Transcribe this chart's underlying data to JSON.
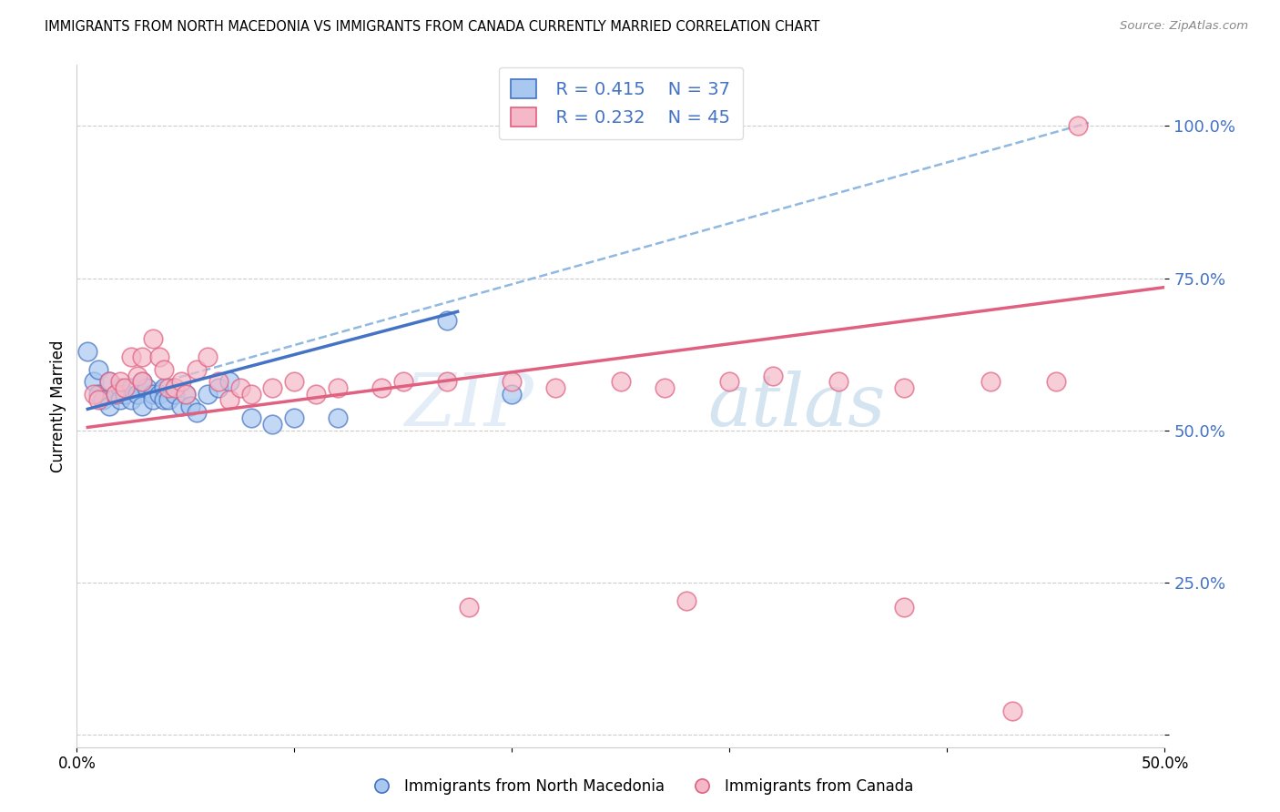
{
  "title": "IMMIGRANTS FROM NORTH MACEDONIA VS IMMIGRANTS FROM CANADA CURRENTLY MARRIED CORRELATION CHART",
  "source": "Source: ZipAtlas.com",
  "ylabel": "Currently Married",
  "xlim": [
    0.0,
    0.5
  ],
  "ylim": [
    -0.02,
    1.1
  ],
  "y_ticks": [
    0.0,
    0.25,
    0.5,
    0.75,
    1.0
  ],
  "y_tick_labels": [
    "",
    "25.0%",
    "50.0%",
    "75.0%",
    "100.0%"
  ],
  "x_ticks": [
    0.0,
    0.1,
    0.2,
    0.3,
    0.4,
    0.5
  ],
  "x_tick_labels": [
    "0.0%",
    "",
    "",
    "",
    "",
    "50.0%"
  ],
  "legend_r1": "R = 0.415",
  "legend_n1": "N = 37",
  "legend_r2": "R = 0.232",
  "legend_n2": "N = 45",
  "color_blue": "#a8c8f0",
  "color_pink": "#f4b8c8",
  "trendline_blue": "#4472c4",
  "trendline_pink": "#e06080",
  "trendline_dashed_color": "#90b8e0",
  "background": "#ffffff",
  "blue_scatter_x": [
    0.005,
    0.008,
    0.01,
    0.01,
    0.012,
    0.015,
    0.015,
    0.018,
    0.02,
    0.02,
    0.022,
    0.025,
    0.025,
    0.028,
    0.03,
    0.03,
    0.032,
    0.035,
    0.035,
    0.038,
    0.04,
    0.04,
    0.042,
    0.045,
    0.048,
    0.05,
    0.052,
    0.055,
    0.06,
    0.065,
    0.07,
    0.08,
    0.09,
    0.1,
    0.12,
    0.17,
    0.2
  ],
  "blue_scatter_y": [
    0.63,
    0.58,
    0.6,
    0.56,
    0.55,
    0.58,
    0.54,
    0.56,
    0.57,
    0.55,
    0.56,
    0.55,
    0.57,
    0.56,
    0.58,
    0.54,
    0.57,
    0.56,
    0.55,
    0.56,
    0.57,
    0.55,
    0.55,
    0.56,
    0.54,
    0.56,
    0.54,
    0.53,
    0.56,
    0.57,
    0.58,
    0.52,
    0.51,
    0.52,
    0.52,
    0.68,
    0.56
  ],
  "pink_scatter_x": [
    0.008,
    0.01,
    0.015,
    0.018,
    0.02,
    0.022,
    0.025,
    0.028,
    0.03,
    0.03,
    0.035,
    0.038,
    0.04,
    0.042,
    0.045,
    0.048,
    0.05,
    0.055,
    0.06,
    0.065,
    0.07,
    0.075,
    0.08,
    0.09,
    0.1,
    0.11,
    0.12,
    0.14,
    0.15,
    0.17,
    0.2,
    0.22,
    0.25,
    0.27,
    0.3,
    0.32,
    0.35,
    0.38,
    0.42,
    0.45,
    0.18,
    0.28,
    0.38,
    0.43,
    0.46
  ],
  "pink_scatter_y": [
    0.56,
    0.55,
    0.58,
    0.56,
    0.58,
    0.57,
    0.62,
    0.59,
    0.62,
    0.58,
    0.65,
    0.62,
    0.6,
    0.57,
    0.57,
    0.58,
    0.56,
    0.6,
    0.62,
    0.58,
    0.55,
    0.57,
    0.56,
    0.57,
    0.58,
    0.56,
    0.57,
    0.57,
    0.58,
    0.58,
    0.58,
    0.57,
    0.58,
    0.57,
    0.58,
    0.59,
    0.58,
    0.57,
    0.58,
    0.58,
    0.21,
    0.22,
    0.21,
    0.04,
    1.0
  ],
  "blue_trendline_x": [
    0.005,
    0.175
  ],
  "blue_trendline_y": [
    0.535,
    0.695
  ],
  "pink_trendline_x": [
    0.005,
    0.5
  ],
  "pink_trendline_y": [
    0.505,
    0.735
  ],
  "dashed_trendline_x": [
    0.015,
    0.465
  ],
  "dashed_trendline_y": [
    0.555,
    1.005
  ],
  "watermark_top": "ZIP",
  "watermark_bottom": "atlas",
  "legend_label_blue": "Immigrants from North Macedonia",
  "legend_label_pink": "Immigrants from Canada"
}
